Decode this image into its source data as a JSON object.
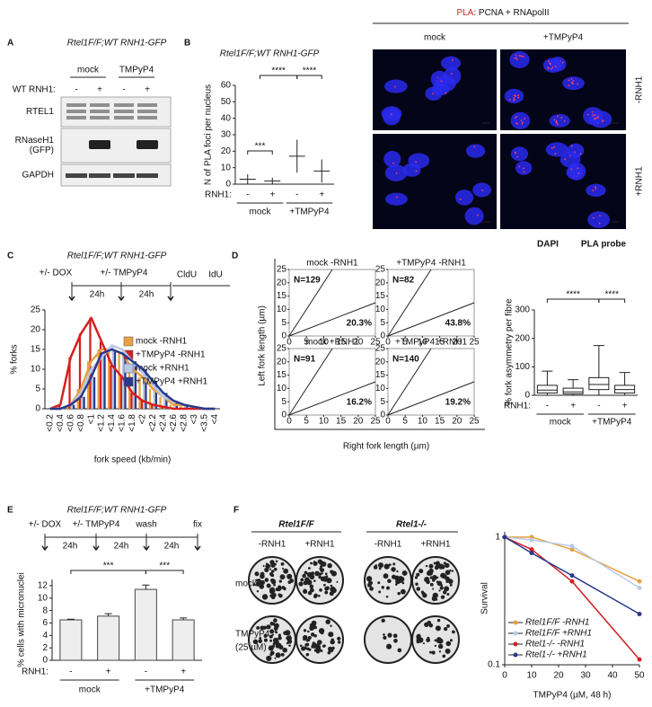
{
  "panels": {
    "A": {
      "letter": "A",
      "title": "Rtel1F/F;WT RNH1-GFP",
      "conditions": [
        "mock",
        "TMPyP4"
      ],
      "row_label": "WT RNH1:",
      "signs": [
        "-",
        "+",
        "-",
        "+"
      ],
      "blots": [
        [
          "RTEL1"
        ],
        [
          "RNaseH1",
          "(GFP)"
        ],
        [
          "GAPDH"
        ]
      ]
    },
    "B": {
      "letter": "B",
      "title": "Rtel1F/F;WT RNH1-GFP",
      "images": {
        "title_prefix": "PLA",
        "title_rest": ": PCNA + RNApolII",
        "columns": [
          "mock",
          "+TMPyP4"
        ],
        "rows": [
          "-RNH1",
          "+RNH1"
        ],
        "legend": [
          "DAPI",
          "PLA probe"
        ]
      }
    },
    "C": {
      "letter": "C",
      "title": "Rtel1F/F;WT RNH1-GFP",
      "timeline": {
        "labels": [
          "+/- DOX",
          "+/- TMPyP4"
        ],
        "intervals": [
          "24h",
          "24h"
        ],
        "pulses": [
          "CldU",
          "IdU"
        ]
      }
    },
    "D": {
      "letter": "D"
    },
    "E": {
      "letter": "E",
      "title": "Rtel1F/F;WT RNH1-GFP",
      "timeline": {
        "labels": [
          "+/- DOX",
          "+/- TMPyP4",
          "wash",
          "fix"
        ],
        "intervals": [
          "24h",
          "24h",
          "24h"
        ]
      }
    },
    "F": {
      "letter": "F",
      "genotypes": [
        "Rtel1F/F",
        "Rtel1-/-"
      ],
      "treatments": [
        "-RNH1",
        "+RNH1",
        "-RNH1",
        "+RNH1"
      ],
      "rows": [
        [
          "mock"
        ],
        [
          "TMPyP4",
          "(25 µM)"
        ]
      ]
    }
  },
  "chart_data": [
    {
      "type": "dot",
      "ylabel": "N of PLA foci per nucleus",
      "categories": [
        "-",
        "+",
        "-",
        "+"
      ],
      "groups": [
        "mock",
        "+TMPyP4"
      ],
      "row_label": "RNH1:",
      "values": [
        3,
        2,
        17,
        8
      ],
      "errors": [
        3,
        2,
        10,
        7
      ],
      "color": "#d42020",
      "significance": [
        "***",
        "****",
        "****"
      ],
      "ylim": [
        0,
        60
      ],
      "yticks": [
        0,
        10,
        20,
        30,
        40,
        50,
        60
      ]
    },
    {
      "type": "bar",
      "ylabel": "% forks",
      "xlabel": "fork speed (kb/min)",
      "categories": [
        "<0.2",
        "<0.4",
        "<0.6",
        "<0.8",
        "<1",
        "<1.2",
        "<1.4",
        "<1.6",
        "<1.8",
        "<2",
        "<2.2",
        "<2.4",
        "<2.6",
        "<2.8",
        "<3",
        "<3.5",
        "<4"
      ],
      "series": [
        {
          "name": "mock -RNH1",
          "color": "#e8a040",
          "values": [
            0,
            0,
            1,
            5,
            12,
            15,
            15,
            14,
            10,
            8,
            5,
            3,
            1,
            1,
            0.5,
            0,
            0
          ]
        },
        {
          "name": "+TMPyP4 -RNH1",
          "color": "#d42020",
          "values": [
            0,
            1,
            13,
            19,
            23,
            17,
            11,
            8,
            4,
            2,
            1,
            0.5,
            0,
            0,
            0,
            0,
            0
          ]
        },
        {
          "name": "mock +RNH1",
          "color": "#b8c8e8",
          "values": [
            0,
            0,
            1,
            4,
            10,
            13,
            16,
            15,
            12,
            9,
            6,
            3,
            2,
            1,
            0.5,
            0,
            0
          ]
        },
        {
          "name": "+TMPyP4 +RNH1",
          "color": "#2a3a8a",
          "values": [
            0,
            0,
            1,
            3,
            8,
            14,
            15,
            14,
            12,
            10,
            7,
            4,
            2,
            1,
            0.5,
            0,
            0
          ]
        }
      ],
      "ylim": [
        0,
        25
      ],
      "yticks": [
        0,
        5,
        10,
        15,
        20,
        25
      ]
    },
    {
      "type": "scatter",
      "xlabel": "Right fork length (µm)",
      "ylabel": "Left fork length (µm)",
      "subplots": [
        {
          "title": "mock -RNH1",
          "n_label": "N=129",
          "pct_label": "20.3%"
        },
        {
          "title": "+TMPyP4 -RNH1",
          "n_label": "N=82",
          "pct_label": "43.8%"
        },
        {
          "title": "mock +RNH1",
          "n_label": "N=91",
          "pct_label": "16.2%"
        },
        {
          "title": "+TMPyP4 +RNH1",
          "n_label": "N=140",
          "pct_label": "19.2%"
        }
      ],
      "xlim": [
        0,
        25
      ],
      "ylim": [
        0,
        25
      ],
      "xticks": [
        0,
        5,
        10,
        15,
        20,
        25
      ],
      "yticks": [
        0,
        5,
        10,
        15,
        20,
        25
      ]
    },
    {
      "type": "box",
      "ylabel": "% fork asymmetry per fibre",
      "categories": [
        "-",
        "+",
        "-",
        "+"
      ],
      "groups": [
        "mock",
        "+TMPyP4"
      ],
      "row_label": "RNH1:",
      "boxes": [
        {
          "min": 0,
          "q1": 8,
          "median": 18,
          "q3": 35,
          "max": 85
        },
        {
          "min": 0,
          "q1": 5,
          "median": 12,
          "q3": 25,
          "max": 55
        },
        {
          "min": 0,
          "q1": 20,
          "median": 38,
          "q3": 62,
          "max": 175
        },
        {
          "min": 0,
          "q1": 8,
          "median": 20,
          "q3": 35,
          "max": 80
        }
      ],
      "significance": [
        "****",
        "****"
      ],
      "ylim": [
        0,
        300
      ],
      "yticks": [
        0,
        100,
        200,
        300
      ]
    },
    {
      "type": "bar",
      "ylabel": "% cells with micronuclei",
      "categories": [
        "-",
        "+",
        "-",
        "+"
      ],
      "groups": [
        "mock",
        "+TMPyP4"
      ],
      "row_label": "RNH1:",
      "values": [
        6.5,
        7.1,
        11.4,
        6.5
      ],
      "errors": [
        0.1,
        0.4,
        0.7,
        0.3
      ],
      "color": "#eeeeee",
      "significance": [
        "***",
        "***"
      ],
      "ylim": [
        0,
        13
      ],
      "yticks": [
        0,
        2,
        4,
        6,
        8,
        10,
        12
      ]
    },
    {
      "type": "line",
      "log_y": true,
      "ylabel": "Survival",
      "xlabel": "TMPyP4 (µM, 48 h)",
      "x": [
        0,
        10,
        25,
        50
      ],
      "series": [
        {
          "name": "Rtel1F/F -RNH1",
          "color": "#e8a040",
          "values": [
            1,
            1,
            0.8,
            0.45
          ]
        },
        {
          "name": "Rtel1F/F +RNH1",
          "color": "#b8cce8",
          "values": [
            1,
            0.95,
            0.85,
            0.4
          ]
        },
        {
          "name": "Rtel1-/- -RNH1",
          "color": "#d42020",
          "values": [
            1,
            0.8,
            0.45,
            0.11
          ]
        },
        {
          "name": "Rtel1-/- +RNH1",
          "color": "#2a3a8a",
          "values": [
            1,
            0.75,
            0.5,
            0.25
          ]
        }
      ],
      "xlim": [
        0,
        50
      ],
      "ylim": [
        0.1,
        1.1
      ],
      "xticks": [
        0,
        10,
        20,
        30,
        40,
        50
      ],
      "yticks": [
        0.1,
        1
      ]
    }
  ]
}
